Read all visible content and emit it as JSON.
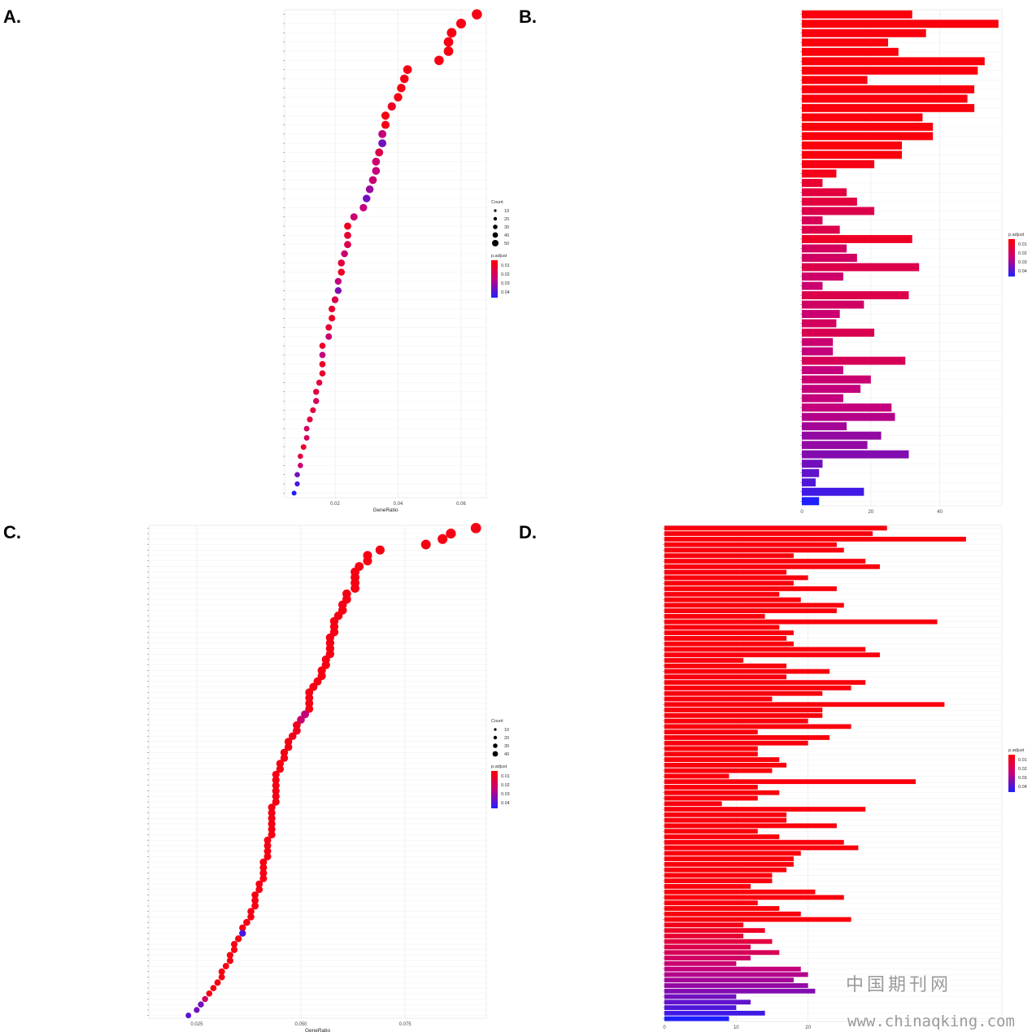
{
  "panels": {
    "A": {
      "letter": "A."
    },
    "B": {
      "letter": "B."
    },
    "C": {
      "letter": "C."
    },
    "D": {
      "letter": "D."
    }
  },
  "legend": {
    "count_title": "Count",
    "padj_title": "p.adjust"
  },
  "watermark": {
    "line1": "中国期刊网",
    "line2": "www.chinaqking.com"
  },
  "chart_data": [
    {
      "panel": "A",
      "type": "scatter",
      "xlabel": "GeneRatio",
      "xlim": [
        0.004,
        0.068
      ],
      "xticks": [
        0.02,
        0.04,
        0.06
      ],
      "xtick_labels": [
        "0.02",
        "0.04",
        "0.06"
      ],
      "count_legend": [
        "10",
        "20",
        "30",
        "40",
        "50"
      ],
      "padj_legend": [
        "0.01",
        "0.02",
        "0.03",
        "0.04"
      ],
      "n_categories": 53,
      "categories": [
        "",
        "",
        "",
        "",
        "",
        "",
        "",
        "",
        "",
        "",
        "",
        "",
        "",
        "",
        "",
        "",
        "",
        "",
        "",
        "",
        "",
        "",
        "",
        "",
        "",
        "",
        "",
        "",
        "",
        "",
        "",
        "",
        "",
        "",
        "",
        "",
        "",
        "",
        "",
        "",
        "",
        "",
        "",
        "",
        "",
        "",
        "",
        "",
        "",
        "",
        "",
        "",
        ""
      ],
      "x": [
        0.065,
        0.06,
        0.057,
        0.056,
        0.056,
        0.053,
        0.043,
        0.042,
        0.041,
        0.04,
        0.038,
        0.036,
        0.036,
        0.035,
        0.035,
        0.034,
        0.033,
        0.033,
        0.032,
        0.031,
        0.03,
        0.029,
        0.026,
        0.024,
        0.024,
        0.024,
        0.023,
        0.022,
        0.022,
        0.021,
        0.021,
        0.02,
        0.019,
        0.019,
        0.018,
        0.018,
        0.016,
        0.016,
        0.016,
        0.016,
        0.015,
        0.014,
        0.014,
        0.013,
        0.012,
        0.011,
        0.011,
        0.01,
        0.009,
        0.009,
        0.008,
        0.008,
        0.007
      ],
      "size": [
        40,
        36,
        35,
        34,
        34,
        33,
        27,
        26,
        26,
        25,
        24,
        23,
        23,
        22,
        22,
        22,
        21,
        21,
        21,
        20,
        19,
        18,
        17,
        16,
        16,
        16,
        15,
        15,
        15,
        14,
        14,
        14,
        13,
        13,
        12,
        12,
        11,
        11,
        11,
        11,
        10,
        10,
        10,
        9,
        9,
        8,
        8,
        8,
        7,
        7,
        7,
        6,
        5
      ],
      "padj": [
        0.003,
        0.003,
        0.003,
        0.003,
        0.003,
        0.003,
        0.003,
        0.003,
        0.003,
        0.003,
        0.006,
        0.003,
        0.003,
        0.02,
        0.03,
        0.012,
        0.018,
        0.02,
        0.018,
        0.025,
        0.03,
        0.02,
        0.018,
        0.005,
        0.008,
        0.012,
        0.018,
        0.01,
        0.006,
        0.02,
        0.028,
        0.012,
        0.008,
        0.006,
        0.008,
        0.018,
        0.006,
        0.02,
        0.006,
        0.008,
        0.01,
        0.01,
        0.015,
        0.01,
        0.01,
        0.015,
        0.015,
        0.006,
        0.01,
        0.018,
        0.03,
        0.035,
        0.04
      ]
    },
    {
      "panel": "B",
      "type": "bar",
      "orientation": "horizontal",
      "xlim": [
        0,
        58
      ],
      "xticks": [
        0,
        20,
        40
      ],
      "xtick_labels": [
        "0",
        "20",
        "40"
      ],
      "padj_legend": [
        "0.01",
        "0.02",
        "0.03",
        "0.04"
      ],
      "n_categories": 53,
      "categories": [
        "",
        "",
        "",
        "",
        "",
        "",
        "",
        "",
        "",
        "",
        "",
        "",
        "",
        "",
        "",
        "",
        "",
        "",
        "",
        "",
        "",
        "",
        "",
        "",
        "",
        "",
        "",
        "",
        "",
        "",
        "",
        "",
        "",
        "",
        "",
        "",
        "",
        "",
        "",
        "",
        "",
        "",
        "",
        "",
        "",
        "",
        "",
        "",
        "",
        "",
        "",
        "",
        ""
      ],
      "values": [
        32,
        57,
        36,
        25,
        28,
        53,
        51,
        19,
        50,
        48,
        50,
        35,
        38,
        38,
        29,
        29,
        21,
        10,
        6,
        13,
        16,
        21,
        6,
        11,
        32,
        13,
        16,
        34,
        12,
        6,
        31,
        18,
        11,
        10,
        21,
        9,
        9,
        30,
        12,
        20,
        17,
        12,
        26,
        27,
        13,
        23,
        19,
        31,
        6,
        5,
        4,
        18,
        5
      ],
      "padj": [
        0.002,
        0.002,
        0.002,
        0.002,
        0.002,
        0.002,
        0.002,
        0.002,
        0.002,
        0.002,
        0.002,
        0.002,
        0.002,
        0.002,
        0.002,
        0.002,
        0.003,
        0.004,
        0.008,
        0.01,
        0.01,
        0.012,
        0.014,
        0.012,
        0.006,
        0.015,
        0.016,
        0.012,
        0.017,
        0.018,
        0.012,
        0.016,
        0.018,
        0.015,
        0.013,
        0.018,
        0.02,
        0.014,
        0.02,
        0.018,
        0.02,
        0.02,
        0.02,
        0.022,
        0.024,
        0.026,
        0.026,
        0.028,
        0.03,
        0.032,
        0.034,
        0.036,
        0.04
      ]
    },
    {
      "panel": "C",
      "type": "scatter",
      "xlabel": "GeneRatio",
      "xlim": [
        0.0135,
        0.0945
      ],
      "xticks": [
        0.025,
        0.05,
        0.075
      ],
      "xtick_labels": [
        "0.025",
        "0.050",
        "0.075"
      ],
      "count_legend": [
        "10",
        "20",
        "30",
        "40"
      ],
      "padj_legend": [
        "0.01",
        "0.02",
        "0.03",
        "0.04"
      ],
      "n_categories": 90,
      "categories": [
        "",
        "",
        "",
        "",
        "",
        "",
        "",
        "",
        "",
        "",
        "",
        "",
        "",
        "",
        "",
        "",
        "",
        "",
        "",
        "",
        "",
        "",
        "",
        "",
        "",
        "",
        "",
        "",
        "",
        "",
        "",
        "",
        "",
        "",
        "",
        "",
        "",
        "",
        "",
        "",
        "",
        "",
        "",
        "",
        "",
        "",
        "",
        "",
        "",
        "",
        "",
        "",
        "",
        "",
        "",
        "",
        "",
        "",
        "",
        "",
        "",
        "",
        "",
        "",
        "",
        "",
        "",
        "",
        "",
        "",
        "",
        "",
        "",
        "",
        "",
        "",
        "",
        "",
        "",
        "",
        "",
        "",
        "",
        "",
        "",
        "",
        "",
        "",
        "",
        ""
      ],
      "x": [
        0.092,
        0.086,
        0.084,
        0.08,
        0.069,
        0.066,
        0.066,
        0.064,
        0.063,
        0.063,
        0.063,
        0.063,
        0.061,
        0.061,
        0.06,
        0.06,
        0.059,
        0.058,
        0.058,
        0.058,
        0.057,
        0.057,
        0.057,
        0.057,
        0.056,
        0.056,
        0.055,
        0.055,
        0.054,
        0.053,
        0.052,
        0.052,
        0.052,
        0.052,
        0.051,
        0.05,
        0.049,
        0.049,
        0.048,
        0.047,
        0.047,
        0.046,
        0.046,
        0.045,
        0.045,
        0.044,
        0.044,
        0.044,
        0.044,
        0.044,
        0.044,
        0.043,
        0.043,
        0.043,
        0.043,
        0.043,
        0.043,
        0.042,
        0.042,
        0.042,
        0.042,
        0.041,
        0.041,
        0.041,
        0.041,
        0.04,
        0.04,
        0.039,
        0.039,
        0.039,
        0.038,
        0.038,
        0.037,
        0.036,
        0.036,
        0.035,
        0.034,
        0.034,
        0.033,
        0.033,
        0.032,
        0.031,
        0.031,
        0.03,
        0.029,
        0.028,
        0.027,
        0.026,
        0.025,
        0.023
      ],
      "size": [
        42,
        38,
        37,
        35,
        30,
        29,
        29,
        28,
        28,
        28,
        28,
        28,
        27,
        27,
        26,
        26,
        26,
        25,
        25,
        25,
        25,
        25,
        25,
        25,
        24,
        24,
        24,
        24,
        23,
        23,
        22,
        22,
        22,
        22,
        22,
        21,
        21,
        21,
        20,
        20,
        20,
        19,
        19,
        19,
        19,
        18,
        18,
        18,
        18,
        18,
        18,
        18,
        18,
        18,
        18,
        18,
        18,
        17,
        17,
        17,
        17,
        17,
        17,
        17,
        17,
        16,
        16,
        16,
        16,
        16,
        15,
        15,
        15,
        14,
        14,
        14,
        13,
        13,
        13,
        13,
        12,
        12,
        12,
        12,
        11,
        11,
        10,
        10,
        9,
        8
      ],
      "padj": [
        0.003,
        0.003,
        0.003,
        0.003,
        0.003,
        0.003,
        0.003,
        0.003,
        0.003,
        0.003,
        0.003,
        0.003,
        0.003,
        0.003,
        0.003,
        0.003,
        0.003,
        0.003,
        0.003,
        0.003,
        0.003,
        0.003,
        0.003,
        0.003,
        0.003,
        0.003,
        0.003,
        0.003,
        0.003,
        0.003,
        0.003,
        0.003,
        0.003,
        0.003,
        0.02,
        0.018,
        0.005,
        0.005,
        0.005,
        0.003,
        0.003,
        0.003,
        0.003,
        0.003,
        0.003,
        0.003,
        0.003,
        0.003,
        0.003,
        0.003,
        0.003,
        0.003,
        0.003,
        0.003,
        0.003,
        0.003,
        0.003,
        0.003,
        0.003,
        0.003,
        0.003,
        0.003,
        0.003,
        0.003,
        0.003,
        0.003,
        0.003,
        0.003,
        0.003,
        0.003,
        0.003,
        0.003,
        0.003,
        0.003,
        0.035,
        0.003,
        0.003,
        0.003,
        0.003,
        0.003,
        0.003,
        0.003,
        0.003,
        0.003,
        0.003,
        0.003,
        0.015,
        0.03,
        0.03,
        0.033
      ]
    },
    {
      "panel": "D",
      "type": "bar",
      "orientation": "horizontal",
      "xlim": [
        0,
        47
      ],
      "xticks": [
        0,
        10,
        20
      ],
      "xtick_labels": [
        "0",
        "10",
        "20"
      ],
      "padj_legend": [
        "0.01",
        "0.02",
        "0.03",
        "0.04"
      ],
      "n_categories": 90,
      "categories": [
        "",
        "",
        "",
        "",
        "",
        "",
        "",
        "",
        "",
        "",
        "",
        "",
        "",
        "",
        "",
        "",
        "",
        "",
        "",
        "",
        "",
        "",
        "",
        "",
        "",
        "",
        "",
        "",
        "",
        "",
        "",
        "",
        "",
        "",
        "",
        "",
        "",
        "",
        "",
        "",
        "",
        "",
        "",
        "",
        "",
        "",
        "",
        "",
        "",
        "",
        "",
        "",
        "",
        "",
        "",
        "",
        "",
        "",
        "",
        "",
        "",
        "",
        "",
        "",
        "",
        "",
        "",
        "",
        "",
        "",
        "",
        "",
        "",
        "",
        "",
        "",
        "",
        "",
        "",
        "",
        "",
        "",
        "",
        "",
        "",
        "",
        "",
        "",
        "",
        ""
      ],
      "values": [
        31,
        29,
        42,
        24,
        25,
        18,
        28,
        30,
        17,
        20,
        18,
        24,
        16,
        19,
        25,
        24,
        14,
        38,
        16,
        18,
        17,
        18,
        28,
        30,
        11,
        17,
        23,
        17,
        28,
        26,
        22,
        15,
        39,
        22,
        22,
        20,
        26,
        13,
        23,
        20,
        13,
        13,
        16,
        17,
        15,
        9,
        35,
        13,
        16,
        13,
        8,
        28,
        17,
        17,
        24,
        13,
        16,
        25,
        27,
        19,
        18,
        18,
        17,
        15,
        15,
        12,
        21,
        25,
        13,
        16,
        19,
        26,
        11,
        14,
        11,
        15,
        12,
        16,
        12,
        10,
        19,
        20,
        18,
        20,
        21,
        10,
        12,
        10,
        14,
        9
      ],
      "padj": [
        0.002,
        0.002,
        0.002,
        0.002,
        0.002,
        0.002,
        0.002,
        0.002,
        0.002,
        0.002,
        0.002,
        0.002,
        0.002,
        0.002,
        0.002,
        0.002,
        0.002,
        0.002,
        0.002,
        0.002,
        0.002,
        0.002,
        0.002,
        0.002,
        0.002,
        0.002,
        0.002,
        0.002,
        0.002,
        0.002,
        0.002,
        0.002,
        0.002,
        0.002,
        0.002,
        0.002,
        0.002,
        0.002,
        0.002,
        0.002,
        0.002,
        0.002,
        0.002,
        0.002,
        0.002,
        0.002,
        0.002,
        0.002,
        0.002,
        0.002,
        0.002,
        0.002,
        0.002,
        0.002,
        0.002,
        0.002,
        0.002,
        0.002,
        0.002,
        0.002,
        0.002,
        0.002,
        0.002,
        0.002,
        0.002,
        0.002,
        0.002,
        0.002,
        0.002,
        0.002,
        0.002,
        0.002,
        0.004,
        0.006,
        0.008,
        0.01,
        0.012,
        0.014,
        0.016,
        0.018,
        0.02,
        0.022,
        0.024,
        0.026,
        0.028,
        0.03,
        0.032,
        0.034,
        0.036,
        0.04
      ]
    }
  ]
}
